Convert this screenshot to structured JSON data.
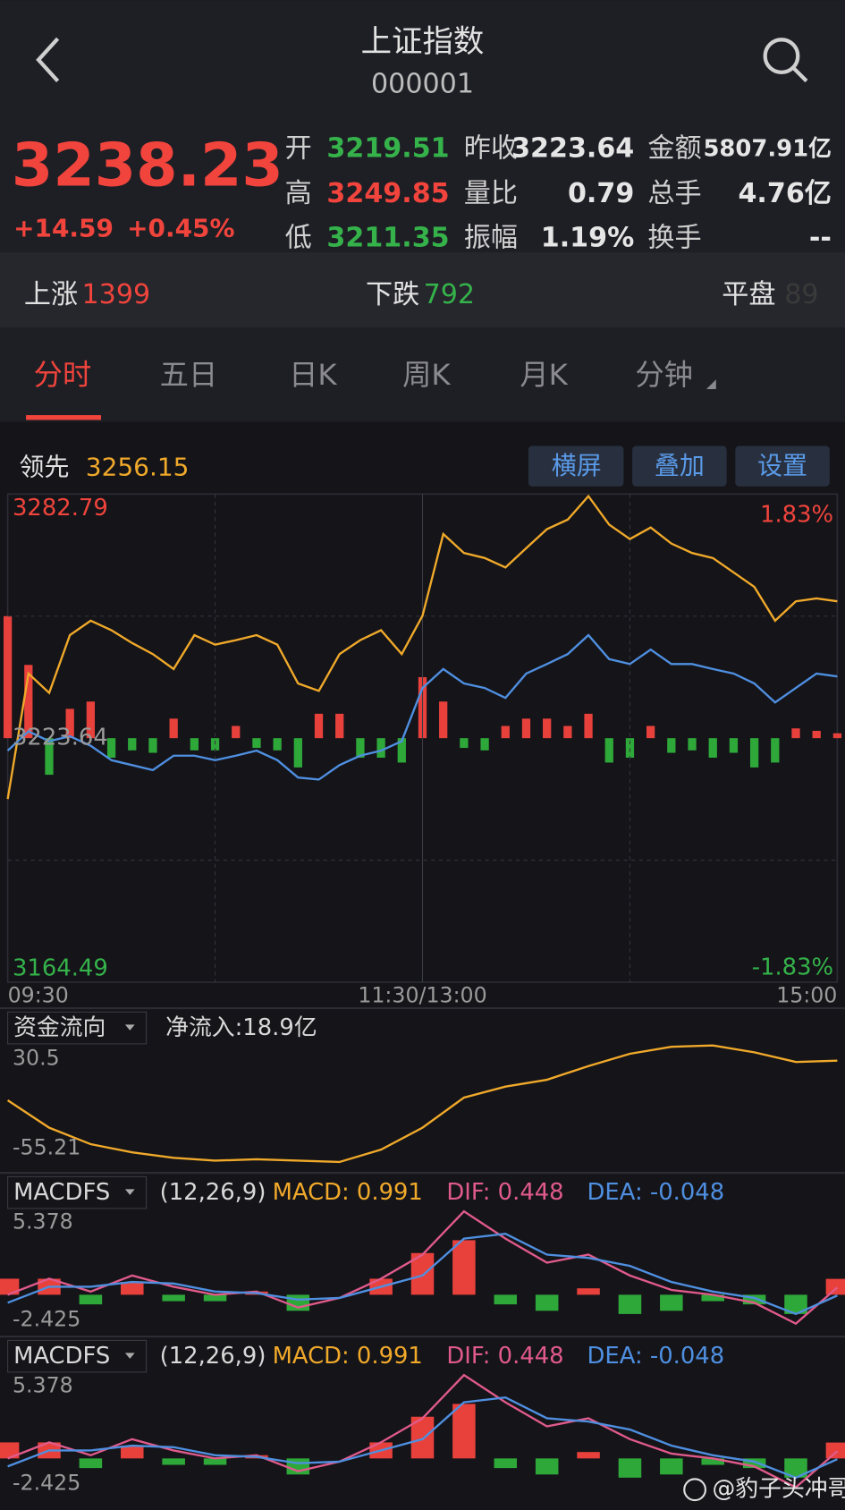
{
  "header": {
    "title": "上证指数",
    "code": "000001"
  },
  "quote": {
    "price": "3238.23",
    "change": "+14.59",
    "change_pct": "+0.45%",
    "fields": [
      [
        "开",
        "3219.51"
      ],
      [
        "昨收",
        "3223.64"
      ],
      [
        "金额",
        "5807.91亿"
      ],
      [
        "高",
        "3249.85"
      ],
      [
        "量比",
        "0.79"
      ],
      [
        "总手",
        "4.76亿"
      ],
      [
        "低",
        "3211.35"
      ],
      [
        "振幅",
        "1.19%"
      ],
      [
        "换手",
        "--"
      ]
    ]
  },
  "breadth": [
    [
      "上涨",
      "1399"
    ],
    [
      "下跌",
      "792"
    ],
    [
      "平盘",
      "89"
    ]
  ],
  "tabs": [
    "分时",
    "五日",
    "日K",
    "周K",
    "月K",
    "分钟"
  ],
  "toolbar": {
    "leader_label": "领先",
    "leader_value": "3256.15",
    "buttons": [
      "横屏",
      "叠加",
      "设置"
    ]
  },
  "chart_data": [
    {
      "type": "line",
      "x": [
        0,
        6,
        12,
        18,
        24,
        30,
        36,
        42,
        48,
        54,
        60,
        66,
        72,
        78,
        84,
        90,
        96,
        102,
        108,
        114,
        120,
        126,
        132,
        138,
        144,
        150,
        156,
        162,
        168,
        174,
        180,
        186,
        192,
        198,
        204,
        210,
        216,
        222,
        228,
        234,
        240
      ],
      "series": [
        {
          "color": "#f0a92a",
          "values": [
            3208.9,
            3239.3,
            3234.6,
            3248.6,
            3252.1,
            3249.8,
            3246.7,
            3244.0,
            3240.4,
            3248.6,
            3246.3,
            3247.4,
            3248.6,
            3246.3,
            3236.9,
            3235.1,
            3244.0,
            3247.4,
            3249.8,
            3244.0,
            3253.3,
            3273.1,
            3268.5,
            3267.3,
            3265.0,
            3269.7,
            3274.3,
            3276.6,
            3282.3,
            3275.4,
            3271.9,
            3274.7,
            3270.8,
            3268.5,
            3267.3,
            3263.8,
            3260.3,
            3252.1,
            3256.8,
            3257.5,
            3256.8
          ]
        },
        {
          "color": "#4f8fe0",
          "values": [
            3220.6,
            3225.3,
            3222.9,
            3224.1,
            3221.8,
            3218.3,
            3217.1,
            3215.9,
            3219.4,
            3219.4,
            3218.3,
            3219.4,
            3220.6,
            3218.3,
            3214.1,
            3213.6,
            3217.1,
            3219.4,
            3220.6,
            3222.9,
            3235.8,
            3240.4,
            3236.9,
            3235.8,
            3233.4,
            3239.3,
            3241.6,
            3244.0,
            3248.6,
            3242.8,
            3241.6,
            3245.1,
            3241.6,
            3241.6,
            3240.4,
            3239.3,
            3236.9,
            3232.3,
            3235.8,
            3239.3,
            3238.6
          ]
        }
      ],
      "xlim": [
        0,
        240
      ],
      "xticks": [
        {
          "value": 0,
          "label": "09:30"
        },
        {
          "value": 120,
          "label": "11:30/13:00"
        },
        {
          "value": 240,
          "label": "15:00"
        }
      ],
      "ylim": [
        3164.49,
        3282.79
      ],
      "yticks": [
        3282.79,
        3223.64,
        3164.49
      ],
      "y2lim": [
        -1.83,
        1.83
      ],
      "y2ticks": [
        {
          "value": 1.83,
          "label": "1.83%"
        },
        {
          "value": -1.83,
          "label": "-1.83%"
        }
      ]
    },
    {
      "type": "bar",
      "x": [
        0,
        6,
        12,
        18,
        24,
        30,
        36,
        42,
        48,
        54,
        60,
        66,
        72,
        78,
        84,
        90,
        96,
        102,
        108,
        114,
        120,
        126,
        132,
        138,
        144,
        150,
        156,
        162,
        168,
        174,
        180,
        186,
        192,
        198,
        204,
        210,
        216,
        222,
        228,
        234,
        240
      ],
      "values": [
        50,
        30,
        -15,
        12,
        15,
        -8,
        -5,
        -6,
        8,
        -5,
        -5,
        5,
        -4,
        -5,
        -12,
        10,
        10,
        -8,
        -8,
        -10,
        25,
        15,
        -4,
        -5,
        5,
        8,
        8,
        5,
        10,
        -10,
        -8,
        5,
        -6,
        -5,
        -8,
        -6,
        -12,
        -10,
        4,
        3,
        2
      ],
      "xlim": [
        0,
        240
      ],
      "ylim": [
        -100,
        100
      ],
      "up_color": "#e8413c",
      "down_color": "#2fa83a"
    },
    {
      "type": "line",
      "title": "资金流向",
      "subtitle": "净流入:18.9亿",
      "x": [
        0,
        12,
        24,
        36,
        48,
        60,
        72,
        84,
        96,
        108,
        120,
        132,
        144,
        156,
        168,
        180,
        192,
        204,
        216,
        228,
        240
      ],
      "series": [
        {
          "color": "#f0a92a",
          "values": [
            -10,
            -30,
            -42,
            -48,
            -52,
            -54,
            -53,
            -54,
            -55,
            -46,
            -30,
            -8,
            0,
            5,
            15,
            24,
            29,
            30,
            25,
            18,
            18.9
          ]
        }
      ],
      "xlim": [
        0,
        240
      ],
      "ylim": [
        -55.21,
        30.5
      ],
      "yticks": [
        30.5,
        -55.21
      ]
    },
    {
      "type": "macd",
      "title": "MACDFS",
      "params": "(12,26,9)",
      "macd_label": "MACD: 0.991",
      "dif_label": "DIF: 0.448",
      "dea_label": "DEA: -0.048",
      "x": [
        0,
        12,
        24,
        36,
        48,
        60,
        72,
        84,
        96,
        108,
        120,
        132,
        144,
        156,
        168,
        180,
        192,
        204,
        216,
        228,
        240
      ],
      "series": [
        {
          "color": "#e05a8a",
          "values": [
            0,
            1,
            0.2,
            1.2,
            0.5,
            0,
            0.2,
            -0.8,
            -0.2,
            1,
            2.5,
            5.2,
            3.5,
            2,
            2.5,
            1.2,
            0.3,
            0,
            -0.5,
            -1.8,
            0.448
          ]
        },
        {
          "color": "#4f8fe0",
          "values": [
            -0.5,
            0.5,
            0.5,
            0.8,
            0.7,
            0.2,
            0.1,
            -0.3,
            -0.2,
            0.5,
            1.2,
            3.5,
            3.8,
            2.5,
            2.3,
            1.8,
            0.8,
            0.2,
            -0.2,
            -1.2,
            -0.048
          ]
        }
      ],
      "histogram": [
        1,
        1,
        -0.6,
        0.8,
        -0.4,
        -0.4,
        0.2,
        -1,
        0,
        1,
        2.6,
        3.4,
        -0.6,
        -1,
        0.4,
        -1.2,
        -1,
        -0.4,
        -0.6,
        -1.2,
        0.991
      ],
      "up_color": "#e8413c",
      "down_color": "#2fa83a",
      "xlim": [
        0,
        240
      ],
      "ylim": [
        -2.425,
        5.378
      ],
      "yticks": [
        5.378,
        -2.425
      ]
    },
    {
      "type": "macd",
      "title": "MACDFS",
      "params": "(12,26,9)",
      "macd_label": "MACD: 0.991",
      "dif_label": "DIF: 0.448",
      "dea_label": "DEA: -0.048",
      "x": [
        0,
        12,
        24,
        36,
        48,
        60,
        72,
        84,
        96,
        108,
        120,
        132,
        144,
        156,
        168,
        180,
        192,
        204,
        216,
        228,
        240
      ],
      "series": [
        {
          "color": "#e05a8a",
          "values": [
            0,
            1,
            0.2,
            1.2,
            0.5,
            0,
            0.2,
            -0.8,
            -0.2,
            1,
            2.5,
            5.2,
            3.5,
            2,
            2.5,
            1.2,
            0.3,
            0,
            -0.5,
            -1.8,
            0.448
          ]
        },
        {
          "color": "#4f8fe0",
          "values": [
            -0.5,
            0.5,
            0.5,
            0.8,
            0.7,
            0.2,
            0.1,
            -0.3,
            -0.2,
            0.5,
            1.2,
            3.5,
            3.8,
            2.5,
            2.3,
            1.8,
            0.8,
            0.2,
            -0.2,
            -1.2,
            -0.048
          ]
        }
      ],
      "histogram": [
        1,
        1,
        -0.6,
        0.8,
        -0.4,
        -0.4,
        0.2,
        -1,
        0,
        1,
        2.6,
        3.4,
        -0.6,
        -1,
        0.4,
        -1.2,
        -1,
        -0.4,
        -0.6,
        -1.2,
        0.991
      ],
      "up_color": "#e8413c",
      "down_color": "#2fa83a",
      "xlim": [
        0,
        240
      ],
      "ylim": [
        -2.425,
        5.378
      ],
      "yticks": [
        5.378,
        -2.425
      ]
    }
  ],
  "watermark": "@豹子头冲哥V"
}
